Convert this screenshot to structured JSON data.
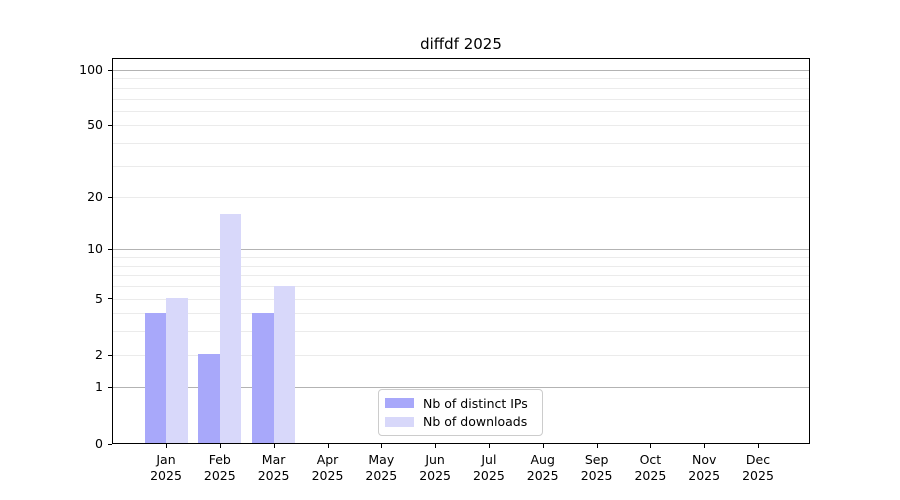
{
  "title": "diffdf 2025",
  "chart_data": {
    "type": "bar",
    "categories": [
      "Jan",
      "Feb",
      "Mar",
      "Apr",
      "May",
      "Jun",
      "Jul",
      "Aug",
      "Sep",
      "Oct",
      "Nov",
      "Dec"
    ],
    "year": "2025",
    "series": [
      {
        "name": "Nb of distinct IPs",
        "color": "#a8a8fa",
        "values": [
          4,
          2,
          4,
          0,
          0,
          0,
          0,
          0,
          0,
          0,
          0,
          0
        ]
      },
      {
        "name": "Nb of downloads",
        "color": "#d8d8fa",
        "values": [
          5,
          16,
          6,
          0,
          0,
          0,
          0,
          0,
          0,
          0,
          0,
          0
        ]
      }
    ],
    "y_axis": {
      "scale": "log1p",
      "tick_labels": [
        0,
        1,
        2,
        5,
        10,
        20,
        50,
        100
      ],
      "major_gridlines": [
        1,
        10,
        100
      ],
      "minor_gridlines": [
        2,
        3,
        4,
        5,
        6,
        7,
        8,
        9,
        20,
        30,
        40,
        50,
        60,
        70,
        80,
        90
      ],
      "ylim": [
        0,
        116
      ]
    },
    "xlabel": "",
    "ylabel": "",
    "grid": true,
    "legend": {
      "position": "lower-center",
      "items": [
        "Nb of distinct IPs",
        "Nb of downloads"
      ]
    }
  }
}
